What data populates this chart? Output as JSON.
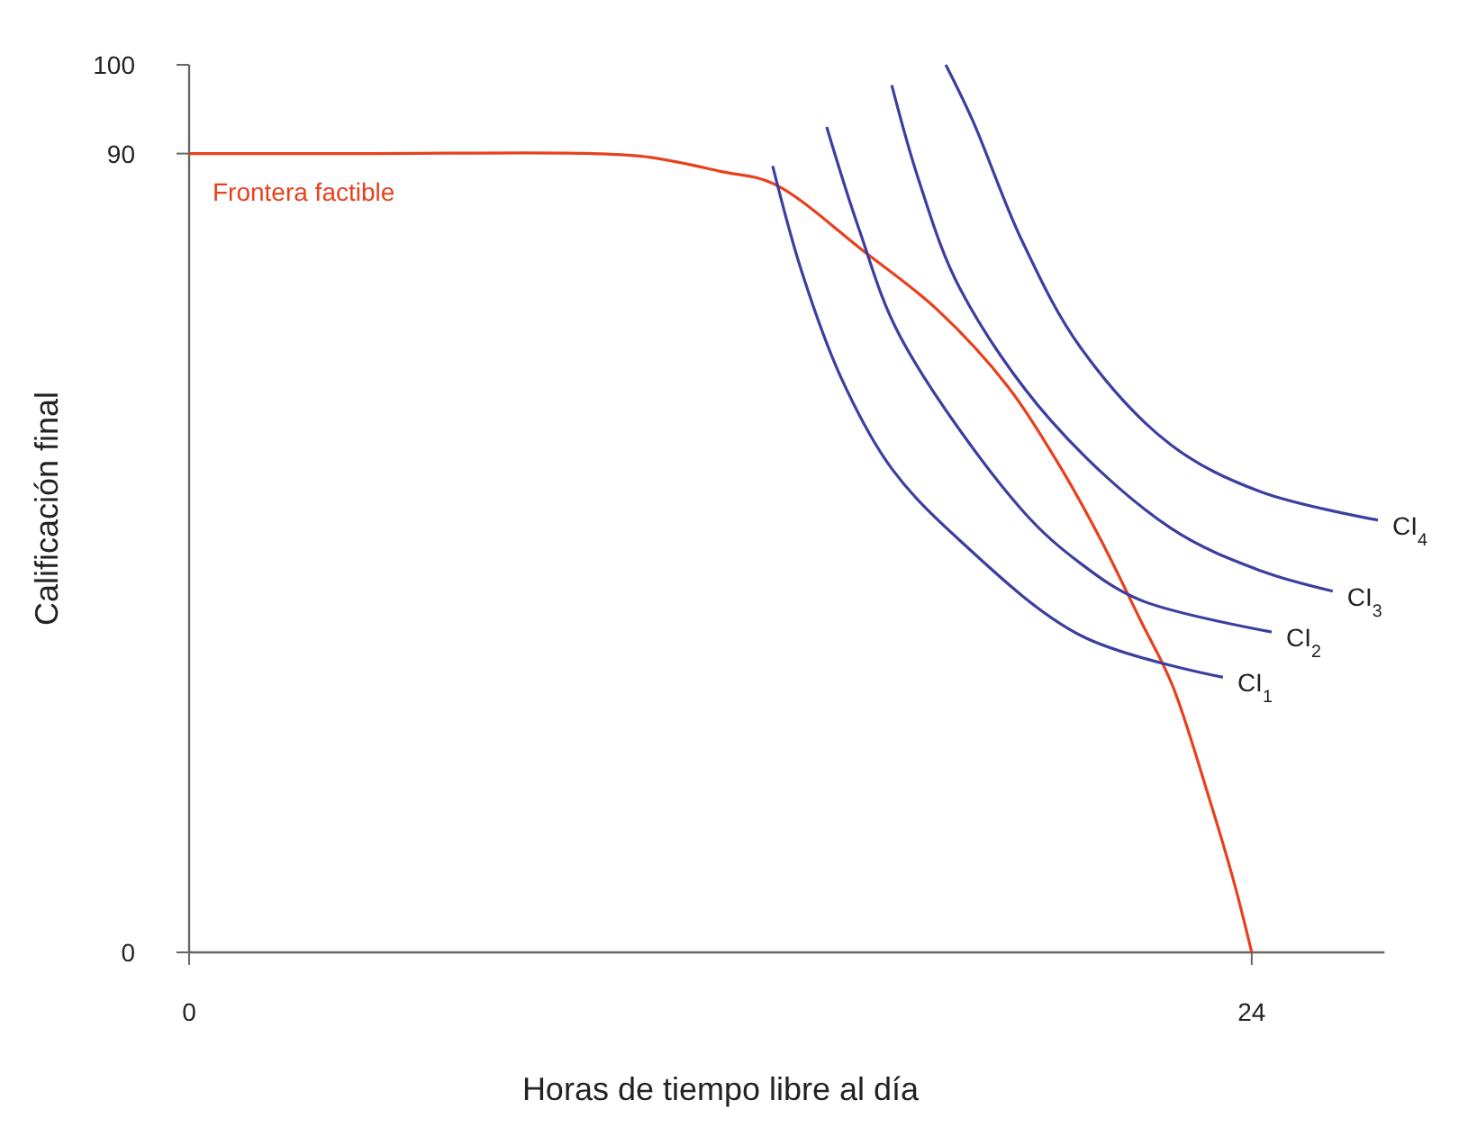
{
  "chart_data": {
    "type": "line",
    "xlabel": "Horas de tiempo libre al día",
    "ylabel": "Calificación final",
    "xlim": [
      0,
      27
    ],
    "ylim": [
      0,
      100
    ],
    "xticks": [
      0,
      24
    ],
    "yticks": [
      0,
      90,
      100
    ],
    "grid": false,
    "marker": "none",
    "line_style": "solid",
    "series": [
      {
        "name": "Frontera factible",
        "color": "#e8401c",
        "x": [
          0,
          4,
          9.15,
          10.4,
          12.0,
          13.2,
          15.26,
          16.9,
          18.5,
          19.7,
          20.6,
          21.5,
          22.2,
          23.0,
          23.6,
          24
        ],
        "values": [
          90,
          90,
          90,
          89.6,
          88.0,
          86.6,
          78.9,
          72.4,
          63.7,
          54.5,
          46.4,
          37.3,
          30.2,
          18.0,
          7.9,
          0
        ]
      },
      {
        "name": "CI$_{1}$",
        "color": "#3c3fa0",
        "x": [
          13.18,
          13.83,
          14.73,
          15.87,
          17.41,
          20.14,
          23.35
        ],
        "values": [
          88.6,
          76.8,
          64.7,
          54.5,
          46.4,
          35.7,
          31.0
        ]
      },
      {
        "name": "CI$_{2}$",
        "color": "#3c3fa0",
        "x": [
          14.4,
          15.13,
          16.07,
          18.8,
          20.14,
          21.48,
          24.45
        ],
        "values": [
          93.0,
          81.5,
          69.3,
          49.9,
          43.8,
          39.7,
          36.1
        ]
      },
      {
        "name": "CI$_{3}$",
        "color": "#3c3fa0",
        "x": [
          15.87,
          16.48,
          17.41,
          19.45,
          22.17,
          24.2,
          25.83
        ],
        "values": [
          97.7,
          87.0,
          74.8,
          60.0,
          47.8,
          43.0,
          40.7
        ]
      },
      {
        "name": "CI$_{4}$",
        "color": "#3c3fa0",
        "x": [
          17.09,
          17.7,
          18.8,
          20.14,
          22.17,
          24.2,
          26.85
        ],
        "values": [
          100,
          93.7,
          80.3,
          68.1,
          57.2,
          51.9,
          48.7
        ]
      }
    ]
  }
}
